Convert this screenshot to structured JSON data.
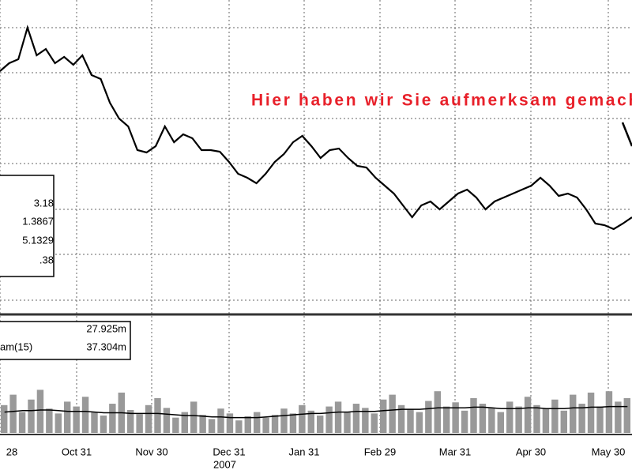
{
  "chart_data": {
    "type": "line",
    "annotation": "Hier haben wir Sie aufmerksam gemacht",
    "x_labels": [
      "28",
      "Oct 31",
      "Nov 30",
      "Dec 31",
      "Jan 31",
      "Feb 29",
      "Mar 31",
      "Apr 30",
      "May 30"
    ],
    "year_label": "2007",
    "legend_values": [
      "3.18",
      "1.3867",
      "5.1329",
      ".38"
    ],
    "ylim": [
      0,
      395
    ],
    "series": [
      {
        "color": "#000000",
        "values": [
          305,
          315,
          320,
          360,
          325,
          333,
          315,
          323,
          313,
          325,
          300,
          295,
          265,
          245,
          235,
          205,
          202,
          210,
          235,
          215,
          225,
          220,
          205,
          205,
          203,
          190,
          175,
          170,
          163,
          175,
          190,
          200,
          215,
          223,
          210,
          195,
          205,
          207,
          195,
          185,
          183,
          170,
          160,
          150,
          135,
          120,
          135,
          140,
          130,
          140,
          150,
          155,
          145,
          130,
          140,
          145,
          150,
          155,
          160,
          170,
          160,
          147,
          150,
          145,
          130,
          112,
          110,
          105,
          112,
          120
        ]
      }
    ],
    "volume": {
      "type": "bar",
      "labels": [
        "27.925m",
        "am(15)",
        "37.304m"
      ],
      "color": "#999999",
      "ma_color": "#000000",
      "ylim": [
        0,
        100
      ],
      "values": [
        40,
        55,
        30,
        48,
        62,
        35,
        28,
        45,
        38,
        52,
        30,
        25,
        42,
        58,
        33,
        27,
        40,
        50,
        36,
        22,
        30,
        45,
        26,
        20,
        35,
        28,
        18,
        24,
        30,
        22,
        26,
        35,
        28,
        40,
        32,
        25,
        38,
        45,
        30,
        42,
        36,
        28,
        48,
        55,
        40,
        34,
        30,
        46,
        60,
        38,
        44,
        32,
        50,
        42,
        36,
        30,
        45,
        38,
        52,
        40,
        35,
        48,
        32,
        55,
        42,
        58,
        38,
        60,
        45,
        50
      ],
      "ma": [
        30,
        31,
        32,
        32,
        33,
        33,
        32,
        31,
        31,
        31,
        30,
        29,
        29,
        29,
        28,
        28,
        28,
        28,
        27,
        26,
        25,
        25,
        24,
        23,
        23,
        22,
        22,
        22,
        22,
        23,
        24,
        25,
        26,
        27,
        28,
        28,
        29,
        30,
        30,
        31,
        31,
        31,
        32,
        33,
        34,
        34,
        34,
        35,
        36,
        36,
        36,
        36,
        37,
        37,
        36,
        35,
        35,
        35,
        36,
        36,
        35,
        35,
        35,
        36,
        36,
        37,
        37,
        38,
        38,
        38
      ]
    }
  }
}
